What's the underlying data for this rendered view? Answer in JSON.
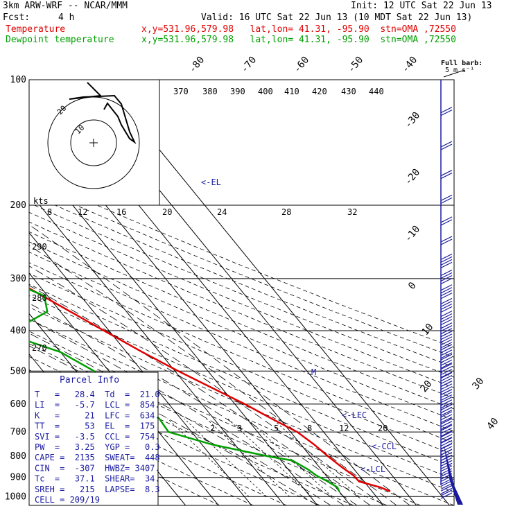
{
  "header": {
    "model": "3km ARW-WRF -- NCAR/MMM",
    "init": "Init: 12 UTC Sat 22 Jun 13",
    "fcst_label": "Fcst:",
    "fcst_value": "4 h",
    "valid": "Valid: 16 UTC Sat 22 Jun 13 (10 MDT Sat 22 Jun 13)",
    "temp_label": "Temperature",
    "dew_label": "Dewpoint temperature",
    "location": "x,y=531.96,579.98   lat,lon= 41.31, -95.90  stn=OMA ,72550",
    "red_color": "#e00000",
    "green_color": "#00a000"
  },
  "chart_data": {
    "type": "skew-t log-p sounding",
    "y_axis": "pressure (hPa), log scale",
    "pressure_ticks": [
      100,
      200,
      300,
      400,
      500,
      600,
      700,
      800,
      900,
      1000
    ],
    "isotherm_labels": [
      -80,
      -70,
      -60,
      -50,
      -40,
      -30,
      -20,
      -10,
      0,
      10,
      20,
      30,
      40
    ],
    "theta_labels": [
      370,
      380,
      390,
      400,
      410,
      420,
      430,
      440
    ],
    "theta_lower_labels": [
      290,
      280,
      270
    ],
    "mixing_ratio_labels": [
      2,
      3,
      5,
      8,
      12,
      20
    ],
    "hodo_axis_label": "kts",
    "hodo_axis_ticks": [
      8,
      12,
      16,
      20,
      24,
      28,
      32
    ],
    "hodo_ring_labels": [
      10,
      20
    ],
    "wind_legend_line1": "Full barb:",
    "wind_legend_line2": "5 m s⁻¹",
    "annotations": [
      "<-EL",
      "M",
      "<-LFC",
      "<-CCL",
      "<-LCL"
    ],
    "series": [
      {
        "name": "Temperature",
        "color": "#e00000",
        "points": [
          [
            972,
            35.5
          ],
          [
            950,
            33.5
          ],
          [
            920,
            28.5
          ],
          [
            890,
            28.3
          ],
          [
            850,
            26.8
          ],
          [
            800,
            25.3
          ],
          [
            750,
            24.0
          ],
          [
            700,
            22.0
          ],
          [
            650,
            17.5
          ],
          [
            600,
            13.0
          ],
          [
            550,
            7.3
          ],
          [
            500,
            1.0
          ],
          [
            450,
            -5.2
          ],
          [
            400,
            -11.5
          ],
          [
            350,
            -18.5
          ],
          [
            300,
            -26.5
          ],
          [
            250,
            -37.0
          ],
          [
            200,
            -49.0
          ],
          [
            180,
            -55.5
          ],
          [
            160,
            -60.5
          ],
          [
            140,
            -61.0
          ],
          [
            130,
            -62.5
          ],
          [
            120,
            -67.0
          ],
          [
            110,
            -71.5
          ],
          [
            100,
            -75.0
          ]
        ]
      },
      {
        "name": "Dewpoint temperature",
        "color": "#00a000",
        "points": [
          [
            972,
            20.0
          ],
          [
            950,
            20.5
          ],
          [
            920,
            19.0
          ],
          [
            890,
            17.0
          ],
          [
            860,
            16.0
          ],
          [
            820,
            13.5
          ],
          [
            800,
            7.0
          ],
          [
            750,
            -7.0
          ],
          [
            700,
            -17.0
          ],
          [
            650,
            -16.5
          ],
          [
            600,
            -18.5
          ],
          [
            550,
            -24.0
          ],
          [
            500,
            -24.5
          ],
          [
            450,
            -30.0
          ],
          [
            410,
            -41.0
          ],
          [
            390,
            -35.5
          ],
          [
            360,
            -24.0
          ],
          [
            330,
            -21.0
          ],
          [
            300,
            -29.0
          ],
          [
            270,
            -42.0
          ],
          [
            250,
            -55.0
          ],
          [
            220,
            -63.0
          ],
          [
            190,
            -70.0
          ],
          [
            170,
            -77.5
          ],
          [
            150,
            -85.5
          ],
          [
            140,
            -94.5
          ],
          [
            130,
            -97.0
          ],
          [
            120,
            -96.0
          ],
          [
            110,
            -97.0
          ],
          [
            100,
            -103.5
          ]
        ]
      }
    ],
    "parcel_info": {
      "title": "Parcel Info",
      "rows": [
        "T   =   28.4  Td  =  21.0",
        "LI  =   -5.7  LCL =  854.",
        "K   =     21  LFC =  634.",
        "TT  =     53  EL  =  175",
        "SVI =   -3.5  CCL =  754.",
        "PW  =   3.25  YGP =   0.3",
        "CAPE =  2135  SWEAT=  448",
        "CIN  =  -307  HWBZ= 3407.",
        "Tc  =   37.1  SHEAR=  34.",
        "SREH =   215  LAPSE=  8.3",
        "CELL = 209/19"
      ]
    }
  }
}
